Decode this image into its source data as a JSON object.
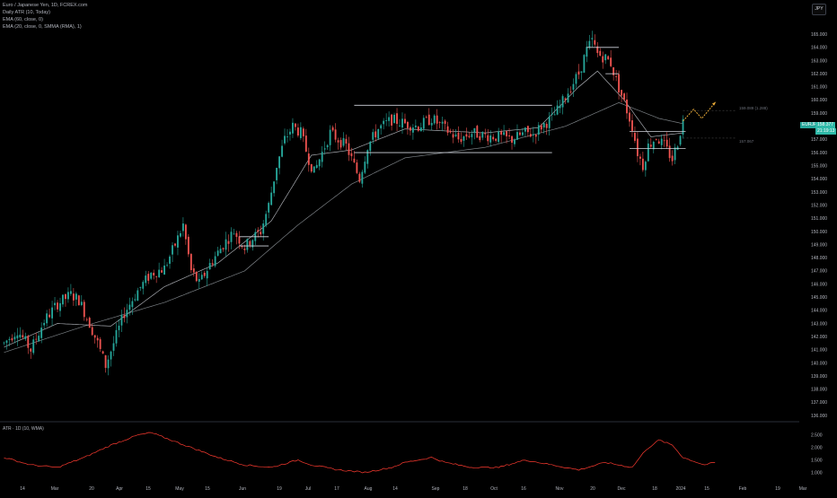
{
  "header": {
    "title": "Euro / Japanese Yen, 1D, FCREX.com",
    "ind1": "Daily ATR (10, Today)",
    "ind2": "EMA (60, close, 0)",
    "ind3": "EMA (20, close, 0, SMMA (RMA), 1)"
  },
  "currency_button": "JPY",
  "price_tag_symbol": "EURJPY",
  "price_tag_value": "158.377",
  "price_tag_timer": "21:19:13",
  "levels": {
    "target_label": "159.089 (1.288)",
    "mid_label": "157.067"
  },
  "atr_panel_title": "ATR · 1D (10, WMA)",
  "colors": {
    "up": "#26a69a",
    "down": "#ef5350",
    "ema": "#9aa0a6",
    "atr": "#ff3b30",
    "projection": "#f5b33a",
    "bg": "#000000"
  },
  "chart_data": [
    {
      "type": "candlestick",
      "title": "Euro / Japanese Yen, 1D, FCREX.com",
      "y_ticks": [
        136,
        137,
        138,
        139,
        140,
        141,
        142,
        143,
        144,
        145,
        146,
        147,
        148,
        149,
        150,
        151,
        152,
        153,
        154,
        155,
        156,
        157,
        158,
        159,
        160,
        161,
        162,
        163,
        164,
        165
      ],
      "ylim": [
        135.8,
        165.9
      ],
      "x_ticks": [
        "14",
        "Mar",
        "20",
        "Apr",
        "15",
        "May",
        "15",
        "Jun",
        "19",
        "Jul",
        "17",
        "Aug",
        "14",
        "Sep",
        "18",
        "Oct",
        "16",
        "Nov",
        "20",
        "Dec",
        "18",
        "2024",
        "15",
        "Feb",
        "19",
        "Mar"
      ],
      "approx_path": [
        [
          0,
          141.5
        ],
        [
          5,
          142.5
        ],
        [
          10,
          141.0
        ],
        [
          15,
          143.2
        ],
        [
          20,
          144.5
        ],
        [
          25,
          145.2
        ],
        [
          28,
          144.8
        ],
        [
          32,
          143.0
        ],
        [
          35,
          141.5
        ],
        [
          38,
          139.8
        ],
        [
          41,
          141.5
        ],
        [
          45,
          143.8
        ],
        [
          50,
          145.5
        ],
        [
          55,
          146.8
        ],
        [
          60,
          147.2
        ],
        [
          64,
          149.0
        ],
        [
          67,
          150.5
        ],
        [
          70,
          147.0
        ],
        [
          73,
          146.0
        ],
        [
          77,
          147.5
        ],
        [
          82,
          149.0
        ],
        [
          86,
          150.0
        ],
        [
          90,
          148.8
        ],
        [
          93,
          149.5
        ],
        [
          96,
          150.0
        ],
        [
          99,
          152.0
        ],
        [
          102,
          155.0
        ],
        [
          105,
          157.0
        ],
        [
          108,
          158.0
        ],
        [
          111,
          157.5
        ],
        [
          114,
          155.5
        ],
        [
          116,
          154.5
        ],
        [
          119,
          156.0
        ],
        [
          122,
          157.5
        ],
        [
          125,
          157.0
        ],
        [
          128,
          156.5
        ],
        [
          131,
          155.0
        ],
        [
          133,
          154.0
        ],
        [
          136,
          156.5
        ],
        [
          140,
          157.8
        ],
        [
          145,
          158.5
        ],
        [
          150,
          158.2
        ],
        [
          155,
          158.0
        ],
        [
          160,
          158.6
        ],
        [
          165,
          157.8
        ],
        [
          170,
          157.0
        ],
        [
          175,
          157.5
        ],
        [
          180,
          157.3
        ],
        [
          185,
          157.2
        ],
        [
          190,
          157.0
        ],
        [
          195,
          157.5
        ],
        [
          198,
          157.4
        ],
        [
          201,
          158.0
        ],
        [
          205,
          158.6
        ],
        [
          208,
          159.5
        ],
        [
          212,
          161.0
        ],
        [
          215,
          162.0
        ],
        [
          218,
          163.8
        ],
        [
          220,
          164.5
        ],
        [
          222,
          163.5
        ],
        [
          225,
          163.2
        ],
        [
          227,
          162.8
        ],
        [
          229,
          161.5
        ],
        [
          232,
          159.8
        ],
        [
          235,
          158.0
        ],
        [
          237,
          156.0
        ],
        [
          239,
          155.0
        ],
        [
          241,
          156.5
        ],
        [
          244,
          157.2
        ],
        [
          247,
          156.5
        ],
        [
          250,
          155.5
        ],
        [
          252,
          156.8
        ],
        [
          254,
          158.4
        ]
      ],
      "ema_fast_approx": [
        [
          0,
          141.2
        ],
        [
          20,
          143.0
        ],
        [
          40,
          142.8
        ],
        [
          60,
          145.8
        ],
        [
          80,
          147.6
        ],
        [
          100,
          150.8
        ],
        [
          115,
          155.8
        ],
        [
          130,
          156.2
        ],
        [
          150,
          157.8
        ],
        [
          180,
          157.5
        ],
        [
          200,
          157.9
        ],
        [
          215,
          161.0
        ],
        [
          222,
          162.2
        ],
        [
          232,
          160.0
        ],
        [
          242,
          157.2
        ],
        [
          254,
          157.5
        ]
      ],
      "ema_slow_approx": [
        [
          0,
          140.8
        ],
        [
          30,
          142.8
        ],
        [
          60,
          144.6
        ],
        [
          90,
          147.0
        ],
        [
          110,
          150.5
        ],
        [
          130,
          153.6
        ],
        [
          150,
          155.6
        ],
        [
          180,
          156.4
        ],
        [
          210,
          158.0
        ],
        [
          230,
          159.8
        ],
        [
          245,
          158.6
        ],
        [
          254,
          158.2
        ]
      ],
      "annotations": [
        {
          "kind": "hline",
          "y": 159.6,
          "from": 131,
          "to": 205
        },
        {
          "kind": "hline",
          "y": 156.0,
          "from": 131,
          "to": 205
        },
        {
          "kind": "hline",
          "y": 164.0,
          "from": 218,
          "to": 230
        },
        {
          "kind": "hline",
          "y": 162.0,
          "from": 225,
          "to": 230
        },
        {
          "kind": "hline",
          "y": 157.6,
          "from": 234,
          "to": 255
        },
        {
          "kind": "hline",
          "y": 156.3,
          "from": 234,
          "to": 255
        },
        {
          "kind": "hline",
          "y": 149.6,
          "from": 88,
          "to": 99
        },
        {
          "kind": "hline",
          "y": 148.9,
          "from": 88,
          "to": 99
        },
        {
          "kind": "projection",
          "points": [
            [
              254,
              158.4
            ],
            [
              258,
              159.3
            ],
            [
              261,
              158.6
            ],
            [
              266,
              159.8
            ]
          ]
        }
      ]
    },
    {
      "type": "line",
      "title": "ATR · 1D (10, WMA)",
      "y_ticks": [
        1.0,
        1.5,
        2.0,
        2.5
      ],
      "ylim": [
        0.8,
        2.75
      ],
      "values_approx": [
        [
          0,
          1.6
        ],
        [
          10,
          1.3
        ],
        [
          20,
          1.2
        ],
        [
          30,
          1.6
        ],
        [
          40,
          2.1
        ],
        [
          50,
          2.5
        ],
        [
          55,
          2.6
        ],
        [
          60,
          2.4
        ],
        [
          70,
          2.0
        ],
        [
          80,
          1.6
        ],
        [
          90,
          1.3
        ],
        [
          100,
          1.2
        ],
        [
          110,
          1.5
        ],
        [
          115,
          1.3
        ],
        [
          125,
          1.1
        ],
        [
          135,
          1.0
        ],
        [
          145,
          1.2
        ],
        [
          150,
          1.4
        ],
        [
          160,
          1.6
        ],
        [
          165,
          1.4
        ],
        [
          175,
          1.2
        ],
        [
          185,
          1.2
        ],
        [
          195,
          1.5
        ],
        [
          205,
          1.3
        ],
        [
          215,
          1.1
        ],
        [
          225,
          1.4
        ],
        [
          230,
          1.3
        ],
        [
          235,
          1.2
        ],
        [
          240,
          1.9
        ],
        [
          245,
          2.3
        ],
        [
          250,
          2.1
        ],
        [
          254,
          1.6
        ],
        [
          262,
          1.3
        ],
        [
          266,
          1.4
        ]
      ]
    }
  ]
}
